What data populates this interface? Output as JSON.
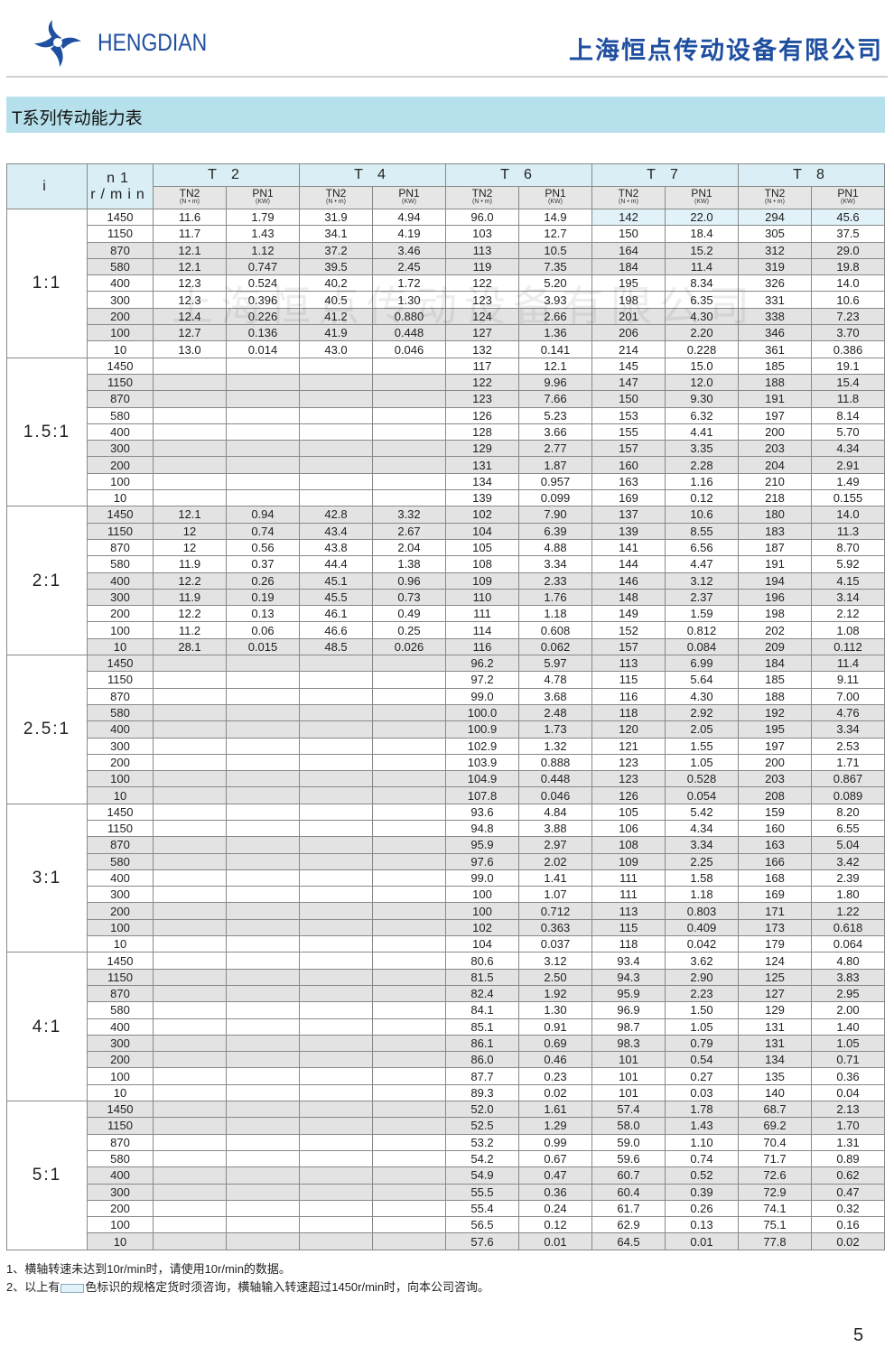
{
  "header": {
    "logo_text": "HENGDIAN",
    "company_name": "上海恒点传动设备有限公司",
    "brand_color": "#1f4fa0"
  },
  "title": "T系列传动能力表",
  "watermark": "上海恒点传动设备有限公司",
  "table": {
    "col_i": "i",
    "col_n1": "n1",
    "col_n1_unit": "r/min",
    "models": [
      "T 2",
      "T 4",
      "T 6",
      "T 7",
      "T 8"
    ],
    "sub_t": "TN2",
    "sub_t_unit": "(N • m)",
    "sub_p": "PN1",
    "sub_p_unit": "(KW)",
    "highlight_color": "#e1f2f8",
    "highlighted_cells": [
      {
        "group": 0,
        "row": 0,
        "cols": [
          7,
          8,
          9,
          10
        ]
      }
    ],
    "groups": [
      {
        "ratio": "1:1",
        "rows": [
          [
            "1450",
            "11.6",
            "1.79",
            "31.9",
            "4.94",
            "96.0",
            "14.9",
            "142",
            "22.0",
            "294",
            "45.6"
          ],
          [
            "1150",
            "11.7",
            "1.43",
            "34.1",
            "4.19",
            "103",
            "12.7",
            "150",
            "18.4",
            "305",
            "37.5"
          ],
          [
            "870",
            "12.1",
            "1.12",
            "37.2",
            "3.46",
            "113",
            "10.5",
            "164",
            "15.2",
            "312",
            "29.0"
          ],
          [
            "580",
            "12.1",
            "0.747",
            "39.5",
            "2.45",
            "119",
            "7.35",
            "184",
            "11.4",
            "319",
            "19.8"
          ],
          [
            "400",
            "12.3",
            "0.524",
            "40.2",
            "1.72",
            "122",
            "5.20",
            "195",
            "8.34",
            "326",
            "14.0"
          ],
          [
            "300",
            "12.3",
            "0.396",
            "40.5",
            "1.30",
            "123",
            "3.93",
            "198",
            "6.35",
            "331",
            "10.6"
          ],
          [
            "200",
            "12.4",
            "0.226",
            "41.2",
            "0.880",
            "124",
            "2.66",
            "201",
            "4.30",
            "338",
            "7.23"
          ],
          [
            "100",
            "12.7",
            "0.136",
            "41.9",
            "0.448",
            "127",
            "1.36",
            "206",
            "2.20",
            "346",
            "3.70"
          ],
          [
            "10",
            "13.0",
            "0.014",
            "43.0",
            "0.046",
            "132",
            "0.141",
            "214",
            "0.228",
            "361",
            "0.386"
          ]
        ]
      },
      {
        "ratio": "1.5:1",
        "rows": [
          [
            "1450",
            "",
            "",
            "",
            "",
            "117",
            "12.1",
            "145",
            "15.0",
            "185",
            "19.1"
          ],
          [
            "1150",
            "",
            "",
            "",
            "",
            "122",
            "9.96",
            "147",
            "12.0",
            "188",
            "15.4"
          ],
          [
            "870",
            "",
            "",
            "",
            "",
            "123",
            "7.66",
            "150",
            "9.30",
            "191",
            "11.8"
          ],
          [
            "580",
            "",
            "",
            "",
            "",
            "126",
            "5.23",
            "153",
            "6.32",
            "197",
            "8.14"
          ],
          [
            "400",
            "",
            "",
            "",
            "",
            "128",
            "3.66",
            "155",
            "4.41",
            "200",
            "5.70"
          ],
          [
            "300",
            "",
            "",
            "",
            "",
            "129",
            "2.77",
            "157",
            "3.35",
            "203",
            "4.34"
          ],
          [
            "200",
            "",
            "",
            "",
            "",
            "131",
            "1.87",
            "160",
            "2.28",
            "204",
            "2.91"
          ],
          [
            "100",
            "",
            "",
            "",
            "",
            "134",
            "0.957",
            "163",
            "1.16",
            "210",
            "1.49"
          ],
          [
            "10",
            "",
            "",
            "",
            "",
            "139",
            "0.099",
            "169",
            "0.12",
            "218",
            "0.155"
          ]
        ]
      },
      {
        "ratio": "2:1",
        "rows": [
          [
            "1450",
            "12.1",
            "0.94",
            "42.8",
            "3.32",
            "102",
            "7.90",
            "137",
            "10.6",
            "180",
            "14.0"
          ],
          [
            "1150",
            "12",
            "0.74",
            "43.4",
            "2.67",
            "104",
            "6.39",
            "139",
            "8.55",
            "183",
            "11.3"
          ],
          [
            "870",
            "12",
            "0.56",
            "43.8",
            "2.04",
            "105",
            "4.88",
            "141",
            "6.56",
            "187",
            "8.70"
          ],
          [
            "580",
            "11.9",
            "0.37",
            "44.4",
            "1.38",
            "108",
            "3.34",
            "144",
            "4.47",
            "191",
            "5.92"
          ],
          [
            "400",
            "12.2",
            "0.26",
            "45.1",
            "0.96",
            "109",
            "2.33",
            "146",
            "3.12",
            "194",
            "4.15"
          ],
          [
            "300",
            "11.9",
            "0.19",
            "45.5",
            "0.73",
            "110",
            "1.76",
            "148",
            "2.37",
            "196",
            "3.14"
          ],
          [
            "200",
            "12.2",
            "0.13",
            "46.1",
            "0.49",
            "111",
            "1.18",
            "149",
            "1.59",
            "198",
            "2.12"
          ],
          [
            "100",
            "11.2",
            "0.06",
            "46.6",
            "0.25",
            "114",
            "0.608",
            "152",
            "0.812",
            "202",
            "1.08"
          ],
          [
            "10",
            "28.1",
            "0.015",
            "48.5",
            "0.026",
            "116",
            "0.062",
            "157",
            "0.084",
            "209",
            "0.112"
          ]
        ]
      },
      {
        "ratio": "2.5:1",
        "rows": [
          [
            "1450",
            "",
            "",
            "",
            "",
            "96.2",
            "5.97",
            "113",
            "6.99",
            "184",
            "11.4"
          ],
          [
            "1150",
            "",
            "",
            "",
            "",
            "97.2",
            "4.78",
            "115",
            "5.64",
            "185",
            "9.11"
          ],
          [
            "870",
            "",
            "",
            "",
            "",
            "99.0",
            "3.68",
            "116",
            "4.30",
            "188",
            "7.00"
          ],
          [
            "580",
            "",
            "",
            "",
            "",
            "100.0",
            "2.48",
            "118",
            "2.92",
            "192",
            "4.76"
          ],
          [
            "400",
            "",
            "",
            "",
            "",
            "100.9",
            "1.73",
            "120",
            "2.05",
            "195",
            "3.34"
          ],
          [
            "300",
            "",
            "",
            "",
            "",
            "102.9",
            "1.32",
            "121",
            "1.55",
            "197",
            "2.53"
          ],
          [
            "200",
            "",
            "",
            "",
            "",
            "103.9",
            "0.888",
            "123",
            "1.05",
            "200",
            "1.71"
          ],
          [
            "100",
            "",
            "",
            "",
            "",
            "104.9",
            "0.448",
            "123",
            "0.528",
            "203",
            "0.867"
          ],
          [
            "10",
            "",
            "",
            "",
            "",
            "107.8",
            "0.046",
            "126",
            "0.054",
            "208",
            "0.089"
          ]
        ]
      },
      {
        "ratio": "3:1",
        "rows": [
          [
            "1450",
            "",
            "",
            "",
            "",
            "93.6",
            "4.84",
            "105",
            "5.42",
            "159",
            "8.20"
          ],
          [
            "1150",
            "",
            "",
            "",
            "",
            "94.8",
            "3.88",
            "106",
            "4.34",
            "160",
            "6.55"
          ],
          [
            "870",
            "",
            "",
            "",
            "",
            "95.9",
            "2.97",
            "108",
            "3.34",
            "163",
            "5.04"
          ],
          [
            "580",
            "",
            "",
            "",
            "",
            "97.6",
            "2.02",
            "109",
            "2.25",
            "166",
            "3.42"
          ],
          [
            "400",
            "",
            "",
            "",
            "",
            "99.0",
            "1.41",
            "111",
            "1.58",
            "168",
            "2.39"
          ],
          [
            "300",
            "",
            "",
            "",
            "",
            "100",
            "1.07",
            "111",
            "1.18",
            "169",
            "1.80"
          ],
          [
            "200",
            "",
            "",
            "",
            "",
            "100",
            "0.712",
            "113",
            "0.803",
            "171",
            "1.22"
          ],
          [
            "100",
            "",
            "",
            "",
            "",
            "102",
            "0.363",
            "115",
            "0.409",
            "173",
            "0.618"
          ],
          [
            "10",
            "",
            "",
            "",
            "",
            "104",
            "0.037",
            "118",
            "0.042",
            "179",
            "0.064"
          ]
        ]
      },
      {
        "ratio": "4:1",
        "rows": [
          [
            "1450",
            "",
            "",
            "",
            "",
            "80.6",
            "3.12",
            "93.4",
            "3.62",
            "124",
            "4.80"
          ],
          [
            "1150",
            "",
            "",
            "",
            "",
            "81.5",
            "2.50",
            "94.3",
            "2.90",
            "125",
            "3.83"
          ],
          [
            "870",
            "",
            "",
            "",
            "",
            "82.4",
            "1.92",
            "95.9",
            "2.23",
            "127",
            "2.95"
          ],
          [
            "580",
            "",
            "",
            "",
            "",
            "84.1",
            "1.30",
            "96.9",
            "1.50",
            "129",
            "2.00"
          ],
          [
            "400",
            "",
            "",
            "",
            "",
            "85.1",
            "0.91",
            "98.7",
            "1.05",
            "131",
            "1.40"
          ],
          [
            "300",
            "",
            "",
            "",
            "",
            "86.1",
            "0.69",
            "98.3",
            "0.79",
            "131",
            "1.05"
          ],
          [
            "200",
            "",
            "",
            "",
            "",
            "86.0",
            "0.46",
            "101",
            "0.54",
            "134",
            "0.71"
          ],
          [
            "100",
            "",
            "",
            "",
            "",
            "87.7",
            "0.23",
            "101",
            "0.27",
            "135",
            "0.36"
          ],
          [
            "10",
            "",
            "",
            "",
            "",
            "89.3",
            "0.02",
            "101",
            "0.03",
            "140",
            "0.04"
          ]
        ]
      },
      {
        "ratio": "5:1",
        "rows": [
          [
            "1450",
            "",
            "",
            "",
            "",
            "52.0",
            "1.61",
            "57.4",
            "1.78",
            "68.7",
            "2.13"
          ],
          [
            "1150",
            "",
            "",
            "",
            "",
            "52.5",
            "1.29",
            "58.0",
            "1.43",
            "69.2",
            "1.70"
          ],
          [
            "870",
            "",
            "",
            "",
            "",
            "53.2",
            "0.99",
            "59.0",
            "1.10",
            "70.4",
            "1.31"
          ],
          [
            "580",
            "",
            "",
            "",
            "",
            "54.2",
            "0.67",
            "59.6",
            "0.74",
            "71.7",
            "0.89"
          ],
          [
            "400",
            "",
            "",
            "",
            "",
            "54.9",
            "0.47",
            "60.7",
            "0.52",
            "72.6",
            "0.62"
          ],
          [
            "300",
            "",
            "",
            "",
            "",
            "55.5",
            "0.36",
            "60.4",
            "0.39",
            "72.9",
            "0.47"
          ],
          [
            "200",
            "",
            "",
            "",
            "",
            "55.4",
            "0.24",
            "61.7",
            "0.26",
            "74.1",
            "0.32"
          ],
          [
            "100",
            "",
            "",
            "",
            "",
            "56.5",
            "0.12",
            "62.9",
            "0.13",
            "75.1",
            "0.16"
          ],
          [
            "10",
            "",
            "",
            "",
            "",
            "57.6",
            "0.01",
            "64.5",
            "0.01",
            "77.8",
            "0.02"
          ]
        ]
      }
    ]
  },
  "notes": {
    "note1": "1、横轴转速未达到10r/min时，请使用10r/min的数据。",
    "note2_before": "2、以上有",
    "note2_after": "色标识的规格定货时须咨询，横轴输入转速超过1450r/min时，向本公司咨询。"
  },
  "page_number": "5"
}
